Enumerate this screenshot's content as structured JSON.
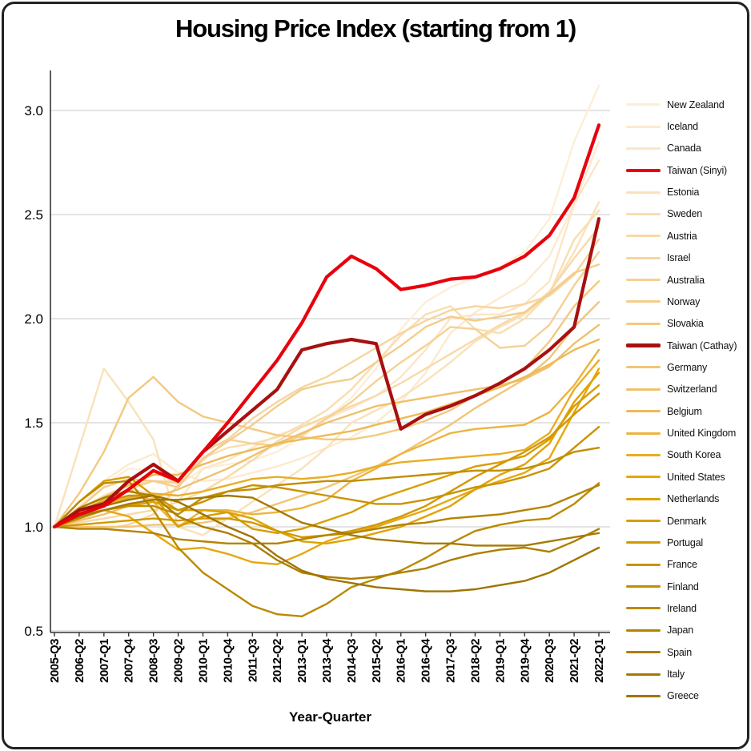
{
  "chart_data": {
    "type": "line",
    "title": "Housing Price Index (starting from 1)",
    "xlabel": "Year-Quarter",
    "ylabel": "",
    "ylim": [
      0.45,
      3.2
    ],
    "y_ticks": [
      0.5,
      1.0,
      1.5,
      2.0,
      2.5,
      3.0
    ],
    "grid": true,
    "legend_position": "right",
    "x_ticks": [
      "2005-Q3",
      "2006-Q2",
      "2007-Q1",
      "2007-Q4",
      "2008-Q3",
      "2009-Q2",
      "2010-Q1",
      "2010-Q4",
      "2011-Q3",
      "2012-Q2",
      "2013-Q1",
      "2013-Q4",
      "2014-Q3",
      "2015-Q2",
      "2016-Q1",
      "2016-Q4",
      "2017-Q3",
      "2018-Q2",
      "2019-Q1",
      "2019-Q4",
      "2020-Q3",
      "2021-Q2",
      "2022-Q1"
    ],
    "series": [
      {
        "name": "New Zealand",
        "color": "#fdeed8",
        "bold": false,
        "values": [
          1.0,
          1.1,
          1.2,
          1.28,
          1.27,
          1.2,
          1.28,
          1.3,
          1.32,
          1.36,
          1.43,
          1.52,
          1.62,
          1.76,
          1.95,
          2.08,
          2.15,
          2.2,
          2.25,
          2.32,
          2.48,
          2.85,
          3.12
        ]
      },
      {
        "name": "Iceland",
        "color": "#fcead0",
        "bold": false,
        "values": [
          1.0,
          1.12,
          1.22,
          1.3,
          1.35,
          1.26,
          1.22,
          1.23,
          1.26,
          1.29,
          1.33,
          1.38,
          1.43,
          1.5,
          1.6,
          1.74,
          1.93,
          2.03,
          2.1,
          2.17,
          2.3,
          2.55,
          2.85
        ]
      },
      {
        "name": "Canada",
        "color": "#fbe6c7",
        "bold": false,
        "values": [
          1.0,
          1.08,
          1.14,
          1.18,
          1.16,
          1.12,
          1.28,
          1.32,
          1.38,
          1.44,
          1.48,
          1.52,
          1.57,
          1.63,
          1.72,
          1.85,
          2.0,
          2.02,
          2.02,
          2.07,
          2.18,
          2.55,
          2.76
        ]
      },
      {
        "name": "Taiwan (Sinyi)",
        "color": "#e8000d",
        "bold": true,
        "values": [
          1.0,
          1.06,
          1.1,
          1.18,
          1.27,
          1.22,
          1.36,
          1.5,
          1.65,
          1.8,
          1.98,
          2.2,
          2.3,
          2.24,
          2.14,
          2.16,
          2.19,
          2.2,
          2.24,
          2.3,
          2.4,
          2.58,
          2.93
        ]
      },
      {
        "name": "Estonia",
        "color": "#f9e2ba",
        "bold": false,
        "values": [
          1.0,
          1.38,
          1.76,
          1.6,
          1.42,
          1.0,
          0.96,
          1.04,
          1.12,
          1.2,
          1.28,
          1.38,
          1.5,
          1.56,
          1.62,
          1.7,
          1.79,
          1.89,
          1.96,
          2.02,
          2.12,
          2.32,
          2.56
        ]
      },
      {
        "name": "Sweden",
        "color": "#f8deb1",
        "bold": false,
        "values": [
          1.0,
          1.08,
          1.15,
          1.2,
          1.22,
          1.22,
          1.33,
          1.38,
          1.4,
          1.43,
          1.49,
          1.56,
          1.66,
          1.79,
          1.92,
          2.02,
          2.06,
          1.95,
          1.93,
          2.0,
          2.12,
          2.38,
          2.52
        ]
      },
      {
        "name": "Austria",
        "color": "#f7daa8",
        "bold": false,
        "values": [
          1.0,
          1.02,
          1.04,
          1.06,
          1.08,
          1.12,
          1.17,
          1.24,
          1.32,
          1.41,
          1.48,
          1.53,
          1.58,
          1.63,
          1.69,
          1.76,
          1.83,
          1.9,
          1.97,
          2.03,
          2.13,
          2.29,
          2.44
        ]
      },
      {
        "name": "Israel",
        "color": "#f6d59e",
        "bold": false,
        "values": [
          1.0,
          1.0,
          0.99,
          1.01,
          1.06,
          1.2,
          1.32,
          1.42,
          1.52,
          1.6,
          1.67,
          1.72,
          1.79,
          1.86,
          1.93,
          1.99,
          2.04,
          2.06,
          2.05,
          2.07,
          2.11,
          2.21,
          2.38
        ]
      },
      {
        "name": "Australia",
        "color": "#f5d194",
        "bold": false,
        "values": [
          1.0,
          1.05,
          1.11,
          1.18,
          1.22,
          1.21,
          1.36,
          1.42,
          1.4,
          1.39,
          1.44,
          1.52,
          1.6,
          1.7,
          1.79,
          1.87,
          1.96,
          1.95,
          1.86,
          1.87,
          1.97,
          2.16,
          2.32
        ]
      },
      {
        "name": "Norway",
        "color": "#f4cd8a",
        "bold": false,
        "values": [
          1.0,
          1.09,
          1.19,
          1.23,
          1.22,
          1.19,
          1.33,
          1.41,
          1.49,
          1.58,
          1.66,
          1.69,
          1.71,
          1.79,
          1.87,
          1.96,
          2.01,
          1.99,
          2.01,
          2.03,
          2.12,
          2.22,
          2.26
        ]
      },
      {
        "name": "Slovakia",
        "color": "#f3c980",
        "bold": false,
        "values": [
          1.0,
          1.16,
          1.36,
          1.62,
          1.72,
          1.6,
          1.53,
          1.5,
          1.47,
          1.44,
          1.43,
          1.42,
          1.42,
          1.44,
          1.47,
          1.51,
          1.56,
          1.63,
          1.69,
          1.76,
          1.89,
          2.06,
          2.18
        ]
      },
      {
        "name": "Taiwan (Cathay)",
        "color": "#a81010",
        "bold": true,
        "values": [
          1.0,
          1.08,
          1.11,
          1.22,
          1.3,
          1.22,
          1.36,
          1.46,
          1.56,
          1.66,
          1.85,
          1.88,
          1.9,
          1.88,
          1.47,
          1.54,
          1.58,
          1.63,
          1.69,
          1.76,
          1.85,
          1.96,
          2.48
        ]
      },
      {
        "name": "Germany",
        "color": "#f2c576",
        "bold": false,
        "values": [
          1.0,
          1.0,
          1.0,
          1.0,
          1.01,
          1.01,
          1.02,
          1.04,
          1.07,
          1.11,
          1.15,
          1.19,
          1.24,
          1.29,
          1.35,
          1.42,
          1.49,
          1.57,
          1.64,
          1.71,
          1.81,
          1.96,
          2.08
        ]
      },
      {
        "name": "Switzerland",
        "color": "#f0c06c",
        "bold": false,
        "values": [
          1.0,
          1.03,
          1.06,
          1.1,
          1.14,
          1.18,
          1.23,
          1.28,
          1.34,
          1.4,
          1.45,
          1.5,
          1.54,
          1.58,
          1.6,
          1.62,
          1.64,
          1.66,
          1.68,
          1.71,
          1.77,
          1.88,
          1.97
        ]
      },
      {
        "name": "Belgium",
        "color": "#eeba57",
        "bold": false,
        "values": [
          1.0,
          1.09,
          1.14,
          1.2,
          1.25,
          1.25,
          1.3,
          1.34,
          1.37,
          1.4,
          1.42,
          1.44,
          1.46,
          1.49,
          1.52,
          1.55,
          1.59,
          1.63,
          1.67,
          1.72,
          1.78,
          1.85,
          1.9
        ]
      },
      {
        "name": "United Kingdom",
        "color": "#ecb43e",
        "bold": false,
        "values": [
          1.0,
          1.07,
          1.13,
          1.18,
          1.12,
          1.0,
          1.08,
          1.08,
          1.06,
          1.07,
          1.09,
          1.13,
          1.22,
          1.28,
          1.35,
          1.4,
          1.45,
          1.47,
          1.48,
          1.49,
          1.55,
          1.68,
          1.85
        ]
      },
      {
        "name": "South Korea",
        "color": "#e9ad24",
        "bold": false,
        "values": [
          1.0,
          1.05,
          1.11,
          1.14,
          1.16,
          1.15,
          1.17,
          1.2,
          1.23,
          1.24,
          1.23,
          1.24,
          1.26,
          1.29,
          1.31,
          1.32,
          1.33,
          1.34,
          1.35,
          1.37,
          1.45,
          1.66,
          1.8
        ]
      },
      {
        "name": "United States",
        "color": "#e6a70b",
        "bold": false,
        "values": [
          1.0,
          1.06,
          1.08,
          1.05,
          0.97,
          0.89,
          0.9,
          0.87,
          0.83,
          0.82,
          0.87,
          0.93,
          0.97,
          1.0,
          1.04,
          1.08,
          1.13,
          1.18,
          1.22,
          1.26,
          1.33,
          1.55,
          1.76
        ]
      },
      {
        "name": "Netherlands",
        "color": "#dfa202",
        "bold": false,
        "values": [
          1.0,
          1.04,
          1.08,
          1.1,
          1.12,
          1.08,
          1.08,
          1.07,
          1.04,
          0.98,
          0.93,
          0.92,
          0.94,
          0.97,
          1.0,
          1.05,
          1.1,
          1.18,
          1.25,
          1.3,
          1.4,
          1.6,
          1.74
        ]
      },
      {
        "name": "Denmark",
        "color": "#d89d01",
        "bold": false,
        "values": [
          1.0,
          1.12,
          1.22,
          1.24,
          1.15,
          1.0,
          1.05,
          1.07,
          0.99,
          0.97,
          0.99,
          1.03,
          1.07,
          1.13,
          1.17,
          1.21,
          1.25,
          1.29,
          1.31,
          1.34,
          1.42,
          1.58,
          1.68
        ]
      },
      {
        "name": "Portugal",
        "color": "#d19801",
        "bold": false,
        "values": [
          1.0,
          1.01,
          1.02,
          1.03,
          1.04,
          1.03,
          1.04,
          1.04,
          1.02,
          0.98,
          0.95,
          0.96,
          0.98,
          1.01,
          1.05,
          1.1,
          1.17,
          1.24,
          1.3,
          1.36,
          1.43,
          1.54,
          1.64
        ]
      },
      {
        "name": "France",
        "color": "#ca9300",
        "bold": false,
        "values": [
          1.0,
          1.08,
          1.12,
          1.15,
          1.15,
          1.08,
          1.12,
          1.17,
          1.2,
          1.19,
          1.17,
          1.15,
          1.13,
          1.11,
          1.11,
          1.13,
          1.16,
          1.19,
          1.21,
          1.24,
          1.28,
          1.38,
          1.48
        ]
      },
      {
        "name": "Finland",
        "color": "#c28e00",
        "bold": false,
        "values": [
          1.0,
          1.04,
          1.08,
          1.1,
          1.1,
          1.06,
          1.14,
          1.17,
          1.18,
          1.2,
          1.21,
          1.22,
          1.22,
          1.23,
          1.24,
          1.25,
          1.26,
          1.27,
          1.27,
          1.28,
          1.31,
          1.36,
          1.38
        ]
      },
      {
        "name": "Ireland",
        "color": "#bb8900",
        "bold": false,
        "values": [
          1.0,
          1.12,
          1.21,
          1.22,
          1.08,
          0.9,
          0.78,
          0.7,
          0.62,
          0.58,
          0.57,
          0.63,
          0.71,
          0.75,
          0.79,
          0.85,
          0.92,
          0.98,
          1.01,
          1.03,
          1.04,
          1.11,
          1.21
        ]
      },
      {
        "name": "Japan",
        "color": "#b48300",
        "bold": false,
        "values": [
          1.0,
          0.99,
          0.99,
          0.98,
          0.97,
          0.94,
          0.93,
          0.92,
          0.92,
          0.92,
          0.94,
          0.96,
          0.97,
          0.99,
          1.01,
          1.02,
          1.04,
          1.05,
          1.06,
          1.08,
          1.1,
          1.15,
          1.2
        ]
      },
      {
        "name": "Spain",
        "color": "#ad7e00",
        "bold": false,
        "values": [
          1.0,
          1.09,
          1.14,
          1.17,
          1.15,
          1.05,
          1.0,
          0.97,
          0.92,
          0.84,
          0.78,
          0.76,
          0.75,
          0.76,
          0.78,
          0.8,
          0.84,
          0.87,
          0.89,
          0.9,
          0.88,
          0.93,
          0.99
        ]
      },
      {
        "name": "Italy",
        "color": "#a67900",
        "bold": false,
        "values": [
          1.0,
          1.05,
          1.08,
          1.11,
          1.13,
          1.13,
          1.14,
          1.15,
          1.14,
          1.08,
          1.02,
          0.99,
          0.96,
          0.94,
          0.93,
          0.92,
          0.92,
          0.91,
          0.91,
          0.91,
          0.93,
          0.95,
          0.97
        ]
      },
      {
        "name": "Greece",
        "color": "#9f7400",
        "bold": false,
        "values": [
          1.0,
          1.05,
          1.1,
          1.13,
          1.15,
          1.12,
          1.06,
          1.0,
          0.95,
          0.86,
          0.79,
          0.75,
          0.73,
          0.71,
          0.7,
          0.69,
          0.69,
          0.7,
          0.72,
          0.74,
          0.78,
          0.84,
          0.9
        ]
      }
    ]
  }
}
